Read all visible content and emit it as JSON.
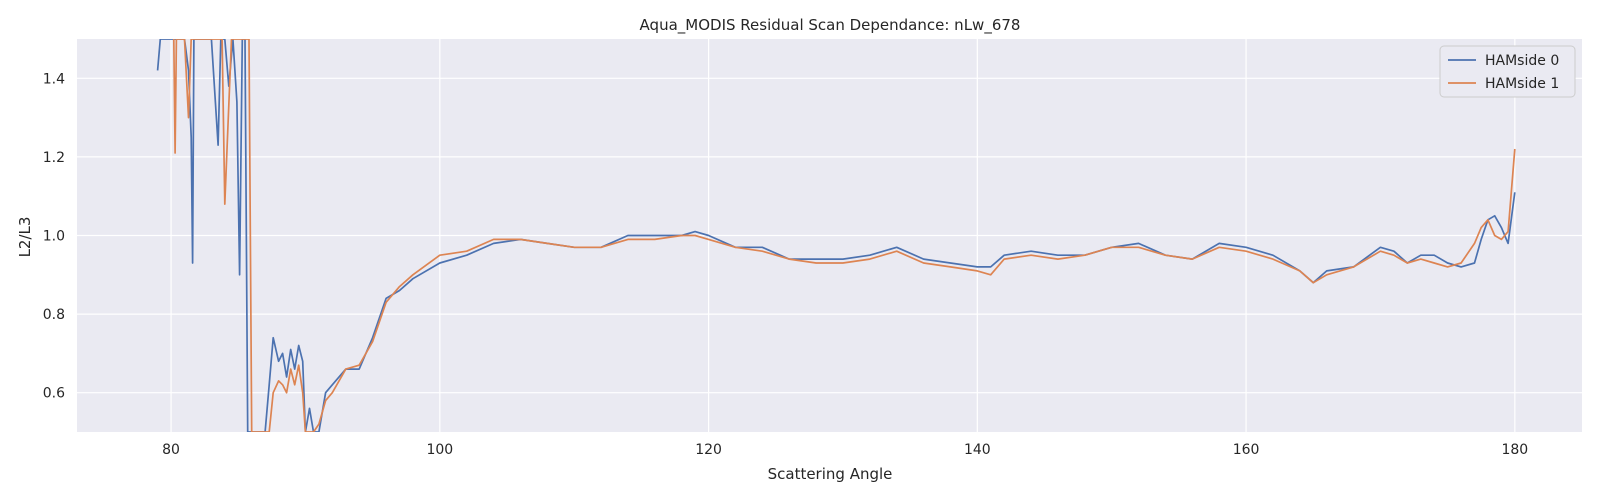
{
  "chart_data": {
    "type": "line",
    "title": "Aqua_MODIS Residual Scan Dependance: nLw_678",
    "xlabel": "Scattering Angle",
    "ylabel": "L2/L3",
    "xlim": [
      73,
      185
    ],
    "ylim": [
      0.5,
      1.5
    ],
    "xticks": [
      80,
      100,
      120,
      140,
      160,
      180
    ],
    "yticks": [
      0.6,
      0.8,
      1.0,
      1.2,
      1.4
    ],
    "grid": true,
    "legend": "top-right",
    "colors": {
      "background": "#eaeaf2",
      "grid": "#ffffff",
      "series0": "#4c72b0",
      "series1": "#dd8452"
    },
    "series": [
      {
        "name": "HAMside 0",
        "x": [
          79.0,
          79.2,
          79.5,
          80.0,
          80.4,
          80.7,
          81.0,
          81.3,
          81.5,
          81.6,
          81.7,
          82.0,
          82.5,
          83.0,
          83.5,
          83.7,
          84.0,
          84.3,
          84.6,
          84.9,
          85.1,
          85.3,
          85.5,
          85.7,
          85.9,
          86.0,
          86.5,
          87.0,
          87.3,
          87.6,
          88.0,
          88.3,
          88.6,
          88.9,
          89.2,
          89.5,
          89.8,
          90.0,
          90.3,
          90.6,
          91.0,
          91.5,
          92.0,
          93.0,
          94.0,
          95.0,
          96.0,
          97.0,
          98.0,
          100.0,
          102.0,
          104.0,
          106.0,
          108.0,
          110.0,
          112.0,
          114.0,
          116.0,
          118.0,
          119.0,
          120.0,
          122.0,
          124.0,
          126.0,
          128.0,
          130.0,
          132.0,
          134.0,
          136.0,
          138.0,
          140.0,
          141.0,
          142.0,
          144.0,
          146.0,
          148.0,
          150.0,
          152.0,
          154.0,
          156.0,
          158.0,
          160.0,
          162.0,
          164.0,
          165.0,
          166.0,
          168.0,
          170.0,
          171.0,
          172.0,
          173.0,
          174.0,
          175.0,
          176.0,
          177.0,
          177.5,
          178.0,
          178.5,
          179.0,
          179.5,
          180.0
        ],
        "y": [
          1.42,
          1.5,
          1.5,
          1.5,
          1.5,
          1.5,
          1.5,
          1.42,
          1.25,
          0.93,
          1.5,
          1.5,
          1.5,
          1.5,
          1.23,
          1.5,
          1.5,
          1.38,
          1.5,
          1.34,
          0.9,
          1.5,
          1.5,
          0.5,
          0.5,
          0.5,
          0.5,
          0.5,
          0.62,
          0.74,
          0.68,
          0.7,
          0.64,
          0.71,
          0.66,
          0.72,
          0.68,
          0.5,
          0.56,
          0.5,
          0.5,
          0.6,
          0.62,
          0.66,
          0.66,
          0.74,
          0.84,
          0.86,
          0.89,
          0.93,
          0.95,
          0.98,
          0.99,
          0.98,
          0.97,
          0.97,
          1.0,
          1.0,
          1.0,
          1.01,
          1.0,
          0.97,
          0.97,
          0.94,
          0.94,
          0.94,
          0.95,
          0.97,
          0.94,
          0.93,
          0.92,
          0.92,
          0.95,
          0.96,
          0.95,
          0.95,
          0.97,
          0.98,
          0.95,
          0.94,
          0.98,
          0.97,
          0.95,
          0.91,
          0.88,
          0.91,
          0.92,
          0.97,
          0.96,
          0.93,
          0.95,
          0.95,
          0.93,
          0.92,
          0.93,
          0.99,
          1.04,
          1.05,
          1.02,
          0.98,
          1.11
        ]
      },
      {
        "name": "HAMside 1",
        "x": [
          80.2,
          80.3,
          80.4,
          80.6,
          81.0,
          81.3,
          81.5,
          82.0,
          82.5,
          83.0,
          83.5,
          83.8,
          84.0,
          84.2,
          84.5,
          84.8,
          85.0,
          85.3,
          85.6,
          85.8,
          86.0,
          86.5,
          87.0,
          87.3,
          87.6,
          88.0,
          88.3,
          88.6,
          88.9,
          89.2,
          89.5,
          89.8,
          90.0,
          90.3,
          90.6,
          91.0,
          91.5,
          92.0,
          93.0,
          94.0,
          95.0,
          96.0,
          97.0,
          98.0,
          100.0,
          102.0,
          104.0,
          106.0,
          108.0,
          110.0,
          112.0,
          114.0,
          116.0,
          118.0,
          119.0,
          120.0,
          122.0,
          124.0,
          126.0,
          128.0,
          130.0,
          132.0,
          134.0,
          136.0,
          138.0,
          140.0,
          141.0,
          142.0,
          144.0,
          146.0,
          148.0,
          150.0,
          152.0,
          154.0,
          156.0,
          158.0,
          160.0,
          162.0,
          164.0,
          165.0,
          166.0,
          168.0,
          170.0,
          171.0,
          172.0,
          173.0,
          174.0,
          175.0,
          176.0,
          177.0,
          177.5,
          178.0,
          178.5,
          179.0,
          179.5,
          180.0
        ],
        "y": [
          1.5,
          1.21,
          1.5,
          1.5,
          1.5,
          1.3,
          1.5,
          1.5,
          1.5,
          1.5,
          1.5,
          1.5,
          1.08,
          1.25,
          1.5,
          1.5,
          1.5,
          1.5,
          1.5,
          1.5,
          0.5,
          0.5,
          0.5,
          0.5,
          0.6,
          0.63,
          0.62,
          0.6,
          0.66,
          0.62,
          0.67,
          0.6,
          0.5,
          0.5,
          0.5,
          0.52,
          0.58,
          0.6,
          0.66,
          0.67,
          0.73,
          0.83,
          0.87,
          0.9,
          0.95,
          0.96,
          0.99,
          0.99,
          0.98,
          0.97,
          0.97,
          0.99,
          0.99,
          1.0,
          1.0,
          0.99,
          0.97,
          0.96,
          0.94,
          0.93,
          0.93,
          0.94,
          0.96,
          0.93,
          0.92,
          0.91,
          0.9,
          0.94,
          0.95,
          0.94,
          0.95,
          0.97,
          0.97,
          0.95,
          0.94,
          0.97,
          0.96,
          0.94,
          0.91,
          0.88,
          0.9,
          0.92,
          0.96,
          0.95,
          0.93,
          0.94,
          0.93,
          0.92,
          0.93,
          0.98,
          1.02,
          1.04,
          1.0,
          0.99,
          1.01,
          1.22
        ]
      }
    ]
  }
}
